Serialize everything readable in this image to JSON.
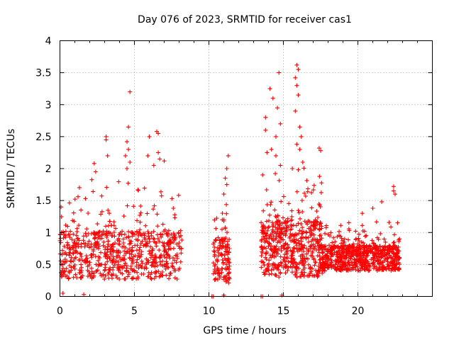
{
  "chart_data": {
    "type": "scatter",
    "title": "Day 076 of 2023, SRMTID for receiver cas1",
    "xlabel": "GPS time / hours",
    "ylabel": "SRMTID / TECUs",
    "xlim": [
      0,
      25
    ],
    "ylim": [
      0,
      4
    ],
    "xticks": [
      0,
      5,
      10,
      15,
      20
    ],
    "yticks": [
      0,
      0.5,
      1,
      1.5,
      2,
      2.5,
      3,
      3.5,
      4
    ],
    "xtick_labels": [
      "0",
      "5",
      "10",
      "15",
      "20"
    ],
    "ytick_labels": [
      "0",
      "0.5",
      "1",
      "1.5",
      "2",
      "2.5",
      "3",
      "3.5",
      "4"
    ],
    "grid": true,
    "marker": "+",
    "series": [
      {
        "name": "SRMTID",
        "color": "#ff0000",
        "segments": [
          {
            "x_start": 0.0,
            "x_end": 8.2,
            "median": 0.65,
            "spread": 0.38,
            "count": 700
          },
          {
            "x_start": 10.3,
            "x_end": 11.4,
            "median": 0.55,
            "spread": 0.35,
            "count": 130
          },
          {
            "x_start": 13.5,
            "x_end": 17.6,
            "median": 0.75,
            "spread": 0.45,
            "count": 520
          },
          {
            "x_start": 17.6,
            "x_end": 22.8,
            "median": 0.6,
            "spread": 0.2,
            "count": 700
          }
        ],
        "points": [
          {
            "x": 4.7,
            "y": 3.2
          },
          {
            "x": 4.6,
            "y": 2.65
          },
          {
            "x": 4.5,
            "y": 2.42
          },
          {
            "x": 4.6,
            "y": 2.3
          },
          {
            "x": 4.4,
            "y": 2.2
          },
          {
            "x": 4.7,
            "y": 2.1
          },
          {
            "x": 4.5,
            "y": 2.0
          },
          {
            "x": 3.1,
            "y": 2.5
          },
          {
            "x": 3.1,
            "y": 2.45
          },
          {
            "x": 3.2,
            "y": 2.2
          },
          {
            "x": 2.3,
            "y": 2.08
          },
          {
            "x": 2.4,
            "y": 1.95
          },
          {
            "x": 6.5,
            "y": 2.58
          },
          {
            "x": 6.6,
            "y": 2.55
          },
          {
            "x": 6.0,
            "y": 2.5
          },
          {
            "x": 6.6,
            "y": 2.25
          },
          {
            "x": 6.7,
            "y": 2.15
          },
          {
            "x": 5.9,
            "y": 2.2
          },
          {
            "x": 6.3,
            "y": 2.05
          },
          {
            "x": 7.0,
            "y": 2.12
          },
          {
            "x": 11.3,
            "y": 2.2
          },
          {
            "x": 11.2,
            "y": 2.0
          },
          {
            "x": 11.1,
            "y": 1.85
          },
          {
            "x": 11.2,
            "y": 1.75
          },
          {
            "x": 11.0,
            "y": 1.6
          },
          {
            "x": 10.9,
            "y": 1.2
          },
          {
            "x": 11.0,
            "y": 1.18
          },
          {
            "x": 14.1,
            "y": 3.25
          },
          {
            "x": 14.3,
            "y": 3.1
          },
          {
            "x": 14.7,
            "y": 3.5
          },
          {
            "x": 14.6,
            "y": 2.95
          },
          {
            "x": 14.8,
            "y": 2.7
          },
          {
            "x": 13.8,
            "y": 2.8
          },
          {
            "x": 13.8,
            "y": 2.6
          },
          {
            "x": 14.5,
            "y": 2.5
          },
          {
            "x": 13.9,
            "y": 2.25
          },
          {
            "x": 14.2,
            "y": 2.3
          },
          {
            "x": 14.5,
            "y": 2.2
          },
          {
            "x": 14.8,
            "y": 2.05
          },
          {
            "x": 15.9,
            "y": 3.62
          },
          {
            "x": 16.0,
            "y": 3.55
          },
          {
            "x": 15.8,
            "y": 3.42
          },
          {
            "x": 15.9,
            "y": 3.3
          },
          {
            "x": 16.0,
            "y": 3.15
          },
          {
            "x": 15.8,
            "y": 2.9
          },
          {
            "x": 16.1,
            "y": 2.65
          },
          {
            "x": 16.2,
            "y": 2.5
          },
          {
            "x": 15.9,
            "y": 2.38
          },
          {
            "x": 16.1,
            "y": 2.3
          },
          {
            "x": 16.3,
            "y": 2.1
          },
          {
            "x": 15.6,
            "y": 2.0
          },
          {
            "x": 17.4,
            "y": 2.32
          },
          {
            "x": 17.5,
            "y": 2.28
          },
          {
            "x": 22.4,
            "y": 1.72
          },
          {
            "x": 22.4,
            "y": 1.65
          },
          {
            "x": 22.5,
            "y": 1.6
          },
          {
            "x": 21.6,
            "y": 1.48
          },
          {
            "x": 21.0,
            "y": 1.38
          },
          {
            "x": 20.3,
            "y": 1.3
          },
          {
            "x": 10.2,
            "y": 0.0
          },
          {
            "x": 10.3,
            "y": 0.0
          },
          {
            "x": 13.5,
            "y": 0.0
          },
          {
            "x": 13.6,
            "y": 0.0
          },
          {
            "x": 11.0,
            "y": 0.02
          },
          {
            "x": 14.9,
            "y": 0.02
          },
          {
            "x": 1.6,
            "y": 0.03
          },
          {
            "x": 0.2,
            "y": 0.05
          }
        ]
      }
    ]
  }
}
